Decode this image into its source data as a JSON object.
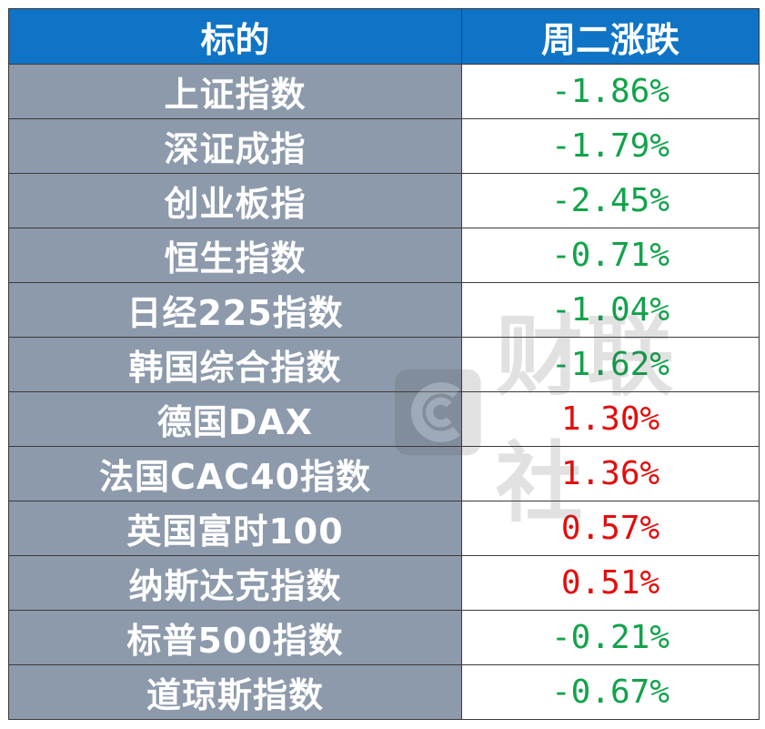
{
  "table": {
    "headers": [
      "标的",
      "周二涨跌"
    ],
    "rows": [
      {
        "name": "上证指数",
        "change": "-1.86%",
        "direction": "down"
      },
      {
        "name": "深证成指",
        "change": "-1.79%",
        "direction": "down"
      },
      {
        "name": "创业板指",
        "change": "-2.45%",
        "direction": "down"
      },
      {
        "name": "恒生指数",
        "change": "-0.71%",
        "direction": "down"
      },
      {
        "name": "日经225指数",
        "change": "-1.04%",
        "direction": "down"
      },
      {
        "name": "韩国综合指数",
        "change": "-1.62%",
        "direction": "down"
      },
      {
        "name": "德国DAX",
        "change": "1.30%",
        "direction": "up"
      },
      {
        "name": "法国CAC40指数",
        "change": "1.36%",
        "direction": "up"
      },
      {
        "name": "英国富时100",
        "change": "0.57%",
        "direction": "up"
      },
      {
        "name": "纳斯达克指数",
        "change": "0.51%",
        "direction": "up"
      },
      {
        "name": "标普500指数",
        "change": "-0.21%",
        "direction": "down"
      },
      {
        "name": "道琼斯指数",
        "change": "-0.67%",
        "direction": "down"
      }
    ]
  },
  "watermark": {
    "text": "财联社",
    "icon": "cls-logo-icon"
  },
  "colors": {
    "header_bg": "#0f74c6",
    "name_cell_bg": "#8d9aab",
    "down": "#11a34a",
    "up": "#e30d0d"
  }
}
